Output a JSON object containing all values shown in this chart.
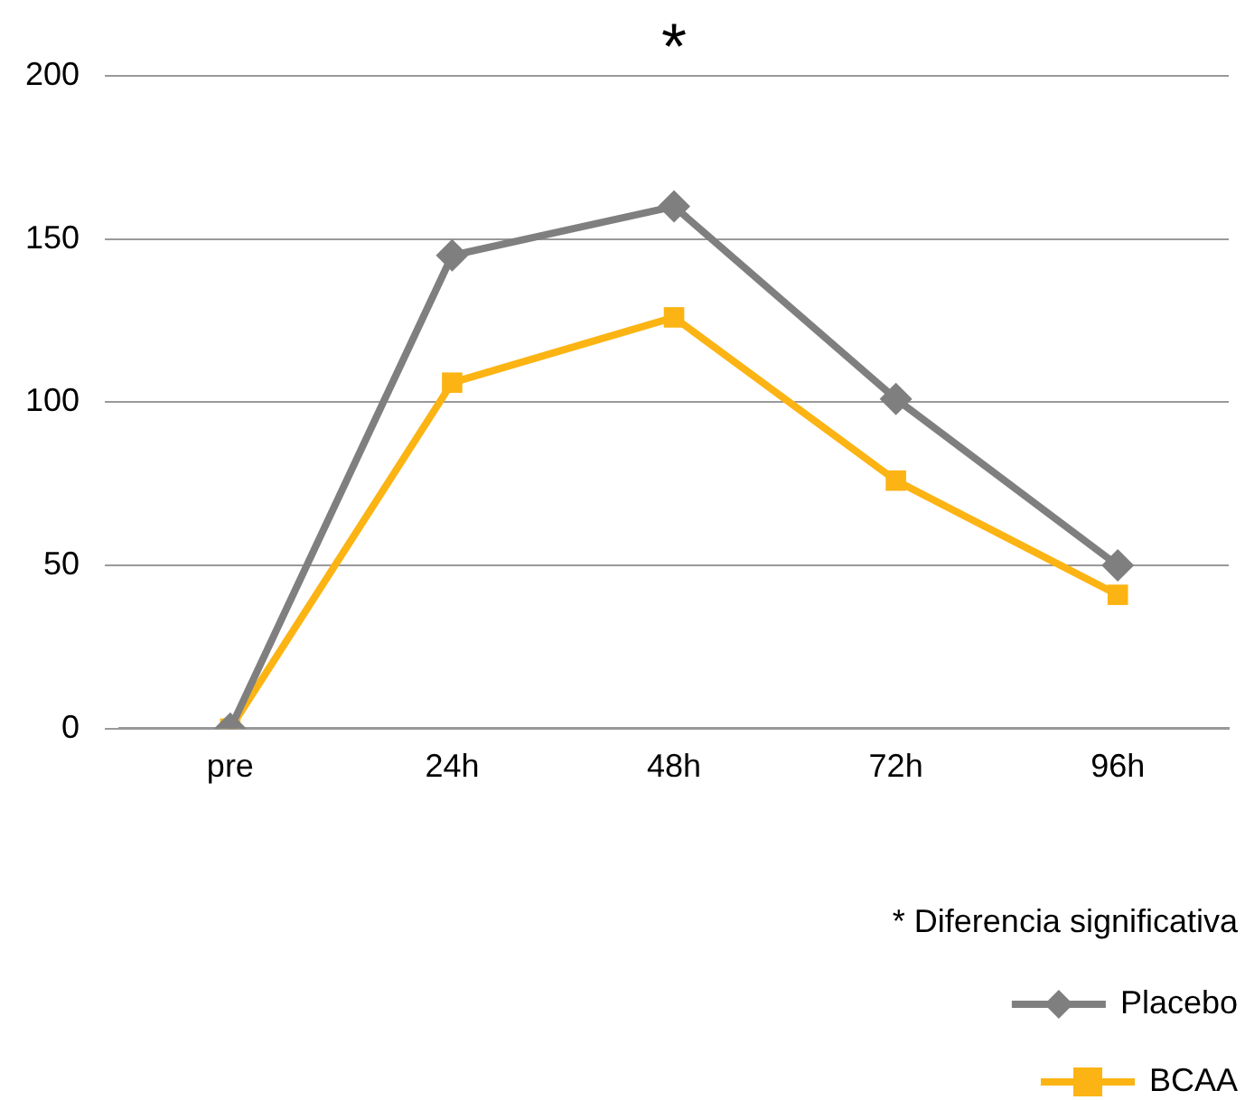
{
  "chart_data": {
    "type": "line",
    "categories": [
      "pre",
      "24h",
      "48h",
      "72h",
      "96h"
    ],
    "series": [
      {
        "name": "Placebo",
        "color": "#7f7f7f",
        "marker": "diamond",
        "values": [
          0,
          145,
          160,
          101,
          50
        ]
      },
      {
        "name": "BCAA",
        "color": "#fbb413",
        "marker": "square",
        "values": [
          0,
          106,
          126,
          76,
          41
        ]
      }
    ],
    "ylim": [
      0,
      200
    ],
    "yticks": [
      0,
      50,
      100,
      150,
      200
    ],
    "grid": "y",
    "legend": "bottom right",
    "annotations": [
      "*",
      "* Diferencia significativa"
    ]
  }
}
